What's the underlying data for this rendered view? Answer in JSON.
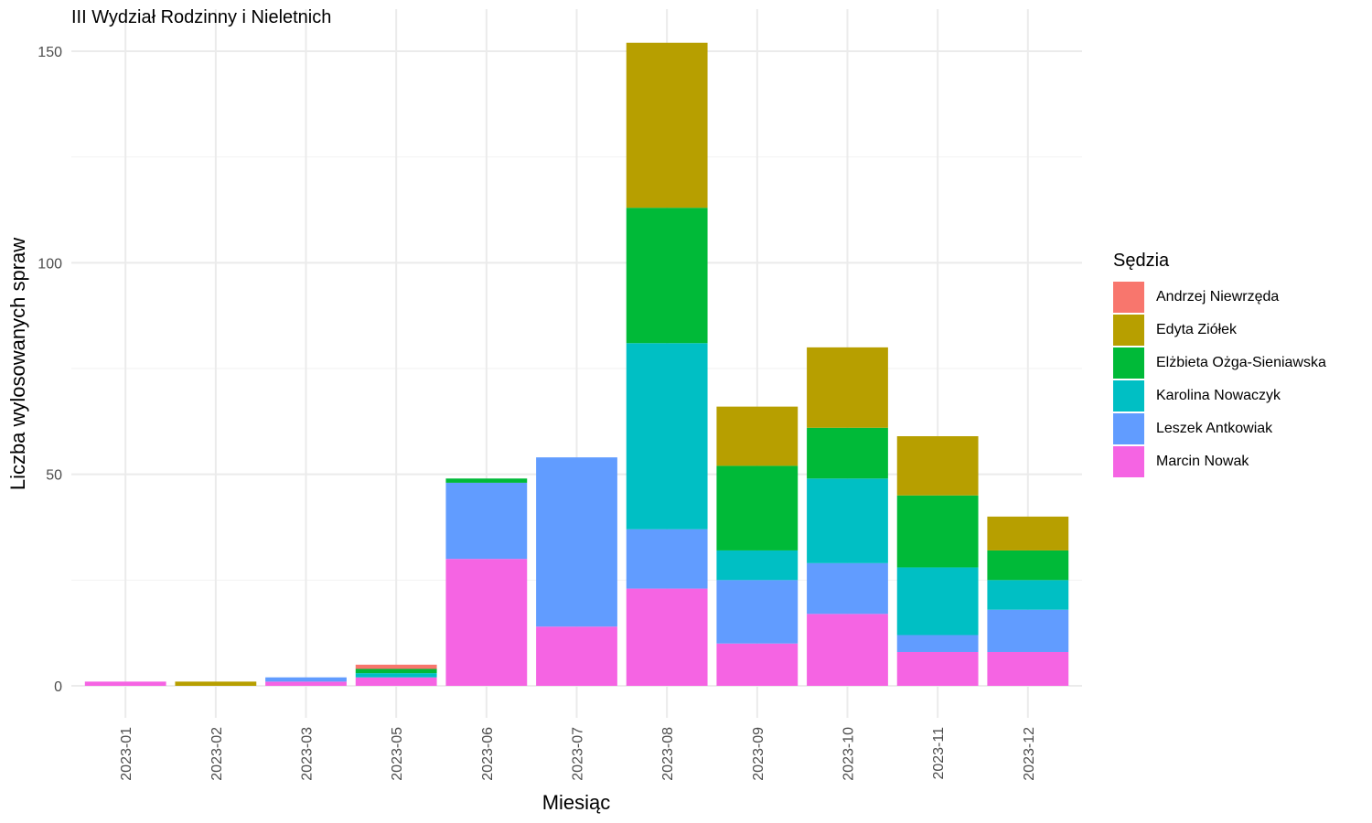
{
  "chart_data": {
    "type": "bar",
    "stacked": true,
    "title": "III Wydział Rodzinny i Nieletnich",
    "xlabel": "Miesiąc",
    "ylabel": "Liczba wylosowanych spraw",
    "ylim": [
      -7,
      158
    ],
    "yticks": [
      0,
      50,
      100,
      150
    ],
    "grid": true,
    "legend_position": "right",
    "legend_title": "Sędzia",
    "categories": [
      "2023-01",
      "2023-02",
      "2023-03",
      "2023-05",
      "2023-06",
      "2023-07",
      "2023-08",
      "2023-09",
      "2023-10",
      "2023-11",
      "2023-12"
    ],
    "series": [
      {
        "name": "Marcin Nowak",
        "color": "#F564E3",
        "values": [
          1,
          0,
          1,
          2,
          30,
          14,
          23,
          10,
          17,
          8,
          8
        ]
      },
      {
        "name": "Leszek Antkowiak",
        "color": "#619CFF",
        "values": [
          0,
          0,
          1,
          0,
          18,
          40,
          14,
          15,
          12,
          4,
          10
        ]
      },
      {
        "name": "Karolina Nowaczyk",
        "color": "#00BFC4",
        "values": [
          0,
          0,
          0,
          1,
          0,
          0,
          44,
          7,
          20,
          16,
          7
        ]
      },
      {
        "name": "Elżbieta Ożga-Sieniawska",
        "color": "#00BA38",
        "values": [
          0,
          0,
          0,
          1,
          1,
          0,
          32,
          20,
          12,
          17,
          7
        ]
      },
      {
        "name": "Edyta Ziółek",
        "color": "#B79F00",
        "values": [
          0,
          1,
          0,
          0,
          0,
          0,
          39,
          14,
          19,
          14,
          8
        ]
      },
      {
        "name": "Andrzej Niewrzęda",
        "color": "#F8766D",
        "values": [
          0,
          0,
          0,
          1,
          0,
          0,
          0,
          0,
          0,
          0,
          0
        ]
      }
    ],
    "legend_order": [
      "Andrzej Niewrzęda",
      "Edyta Ziółek",
      "Elżbieta Ożga-Sieniawska",
      "Karolina Nowaczyk",
      "Leszek Antkowiak",
      "Marcin Nowak"
    ]
  }
}
